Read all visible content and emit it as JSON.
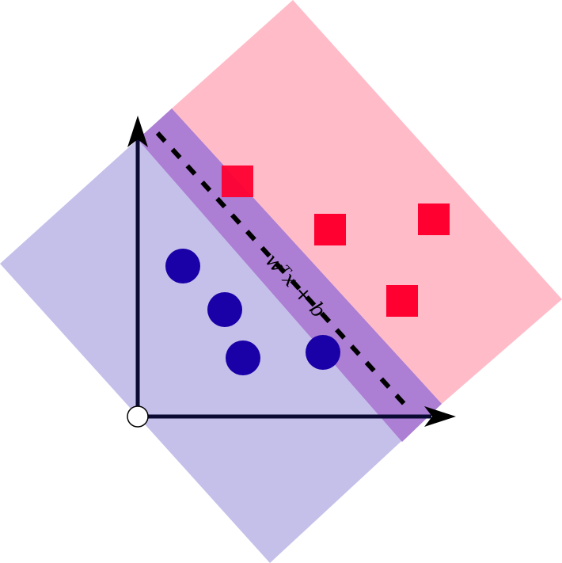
{
  "diagram": {
    "hyperplane_label": "wᵀx + b",
    "colors": {
      "negative_region": "#c5c0ea",
      "positive_region": "#ffbcc8",
      "margin_band": "#ac7ed4",
      "negative_class": "#1a00a7",
      "positive_class": "#ff0030",
      "axes": "#0a0a33",
      "decision_boundary": "#000000"
    },
    "negative_points_count": 4,
    "positive_points_count": 4
  }
}
